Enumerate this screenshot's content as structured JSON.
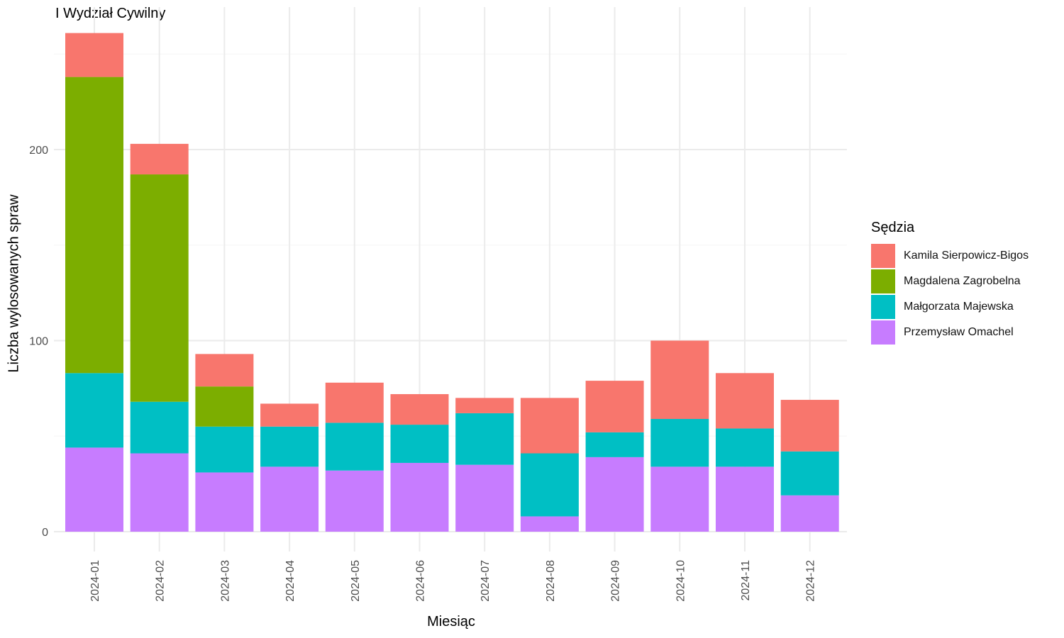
{
  "chart_data": {
    "type": "bar",
    "stacked": true,
    "title": "I Wydział Cywilny",
    "xlabel": "Miesiąc",
    "ylabel": "Liczba wylosowanych spraw",
    "ylim": [
      0,
      260
    ],
    "yticks": [
      0,
      100,
      200
    ],
    "legend_title": "Sędzia",
    "legend_position": "right",
    "grid": true,
    "categories": [
      "2024-01",
      "2024-02",
      "2024-03",
      "2024-04",
      "2024-05",
      "2024-06",
      "2024-07",
      "2024-08",
      "2024-09",
      "2024-10",
      "2024-11",
      "2024-12"
    ],
    "series": [
      {
        "name": "Przemysław Omachel",
        "color": "#C77CFF",
        "values": [
          44,
          41,
          31,
          34,
          32,
          36,
          35,
          8,
          39,
          34,
          34,
          19
        ]
      },
      {
        "name": "Małgorzata Majewska",
        "color": "#00BFC4",
        "values": [
          39,
          27,
          24,
          21,
          25,
          20,
          27,
          33,
          13,
          25,
          20,
          23
        ]
      },
      {
        "name": "Magdalena Zagrobelna",
        "color": "#7CAE00",
        "values": [
          155,
          119,
          21,
          0,
          0,
          0,
          0,
          0,
          0,
          0,
          0,
          0
        ]
      },
      {
        "name": "Kamila Sierpowicz-Bigos",
        "color": "#F8766D",
        "values": [
          23,
          16,
          17,
          12,
          21,
          16,
          8,
          29,
          27,
          41,
          29,
          27
        ]
      }
    ],
    "legend_order": [
      "Kamila Sierpowicz-Bigos",
      "Magdalena Zagrobelna",
      "Małgorzata Majewska",
      "Przemysław Omachel"
    ]
  }
}
